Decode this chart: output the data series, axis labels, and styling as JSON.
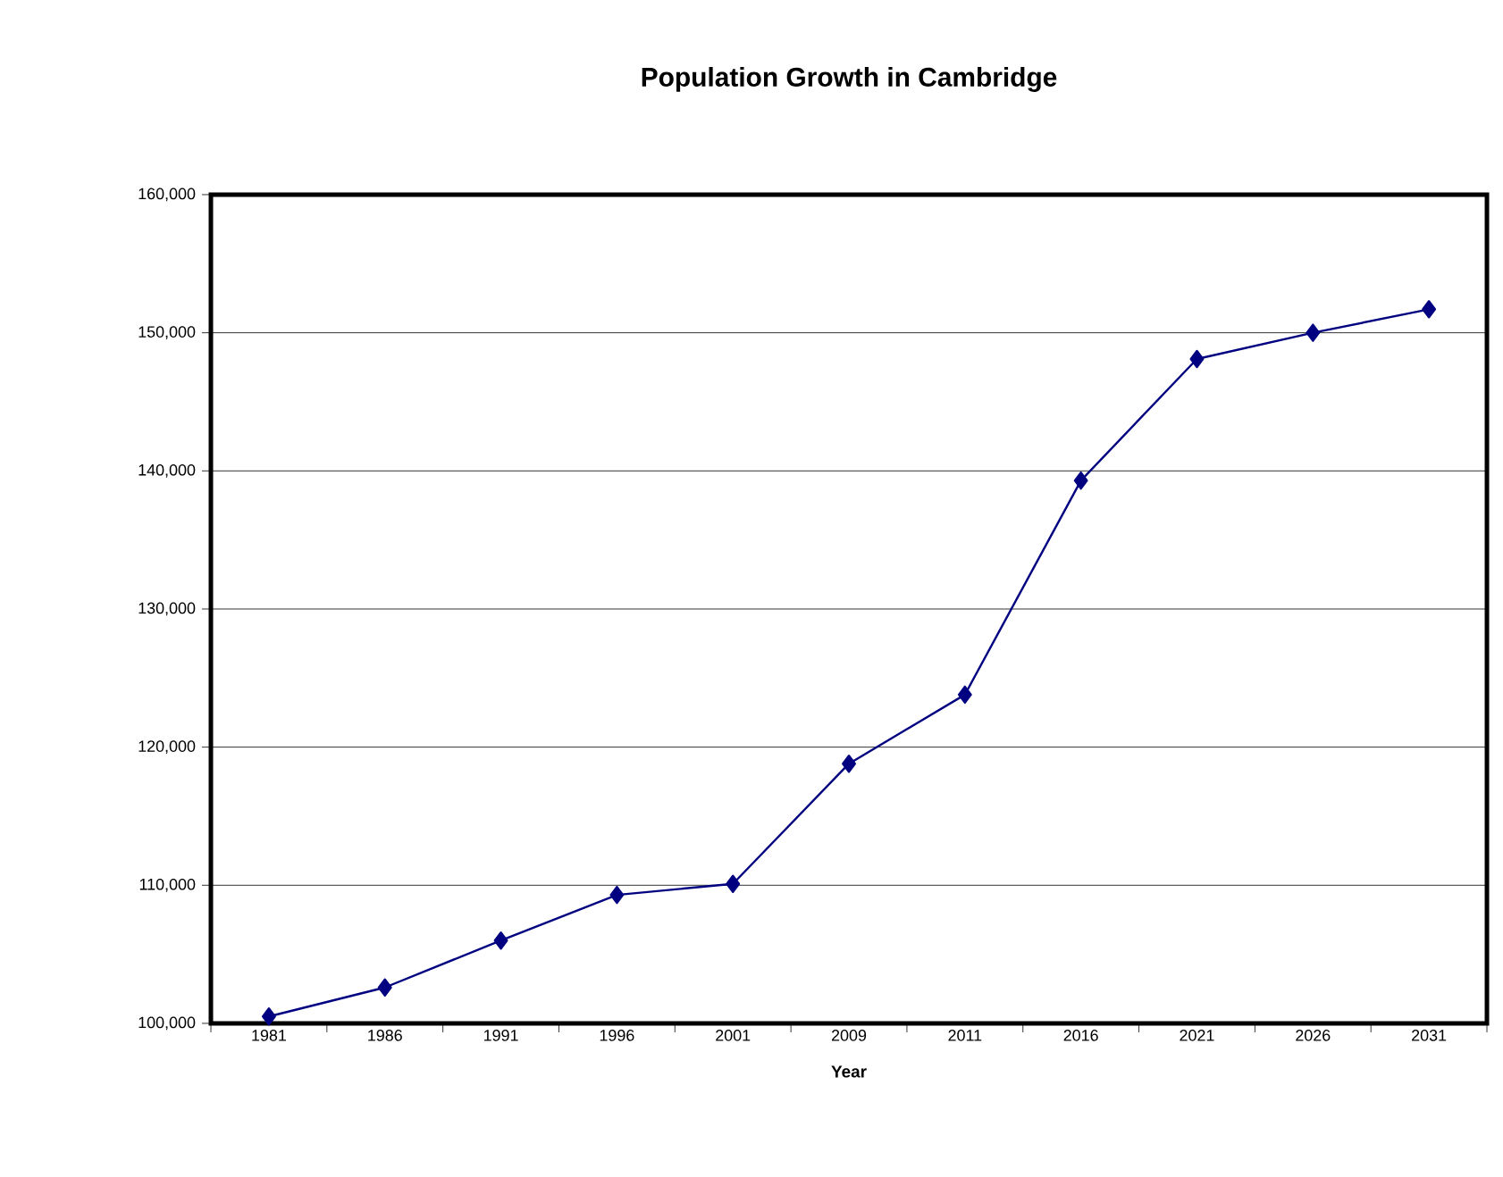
{
  "chart_data": {
    "type": "line",
    "title": "Population Growth in Cambridge",
    "xlabel": "Year",
    "categories": [
      "1981",
      "1986",
      "1991",
      "1996",
      "2001",
      "2009",
      "2011",
      "2016",
      "2021",
      "2026",
      "2031"
    ],
    "series": [
      {
        "color": "#000080",
        "values": [
          100500,
          102600,
          106000,
          109300,
          110100,
          118800,
          123800,
          139300,
          148100,
          150000,
          151700
        ]
      }
    ],
    "ylim": [
      100000,
      160000
    ],
    "yticks": [
      {
        "value": 100000,
        "label": "100,000"
      },
      {
        "value": 110000,
        "label": "110,000"
      },
      {
        "value": 120000,
        "label": "120,000"
      },
      {
        "value": 130000,
        "label": "130,000"
      },
      {
        "value": 140000,
        "label": "140,000"
      },
      {
        "value": 150000,
        "label": "150,000"
      },
      {
        "value": 160000,
        "label": "160,000"
      }
    ],
    "grid": "y",
    "marker": "diamond",
    "line_style": "solid"
  }
}
